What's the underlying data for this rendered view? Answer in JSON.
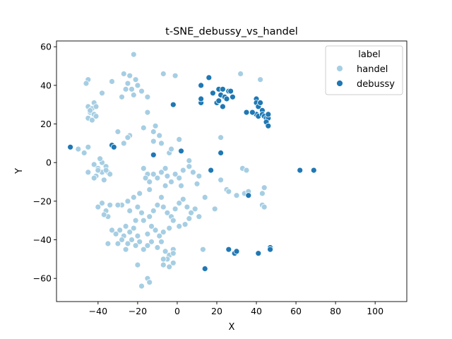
{
  "chart_data": {
    "type": "scatter",
    "title": "t-SNE_debussy_vs_handel",
    "xlabel": "X",
    "ylabel": "Y",
    "xlim": [
      -61,
      116
    ],
    "ylim": [
      -72,
      63
    ],
    "xticks": [
      -40,
      -20,
      0,
      20,
      40,
      60,
      80,
      100
    ],
    "yticks": [
      -60,
      -40,
      -20,
      0,
      20,
      40,
      60
    ],
    "xtick_labels": [
      "−40",
      "−20",
      "0",
      "20",
      "40",
      "60",
      "80",
      "100"
    ],
    "ytick_labels": [
      "−60",
      "−40",
      "−20",
      "0",
      "20",
      "40",
      "60"
    ],
    "grid": false,
    "legend": {
      "title": "label",
      "placement": "top-right",
      "entries": [
        "handel",
        "debussy"
      ]
    },
    "series": [
      {
        "name": "handel",
        "color": "#a6cee3",
        "points": [
          [
            -22,
            56
          ],
          [
            -45,
            43
          ],
          [
            -46,
            41
          ],
          [
            -38,
            36
          ],
          [
            -33,
            42
          ],
          [
            -27,
            46
          ],
          [
            -24,
            45
          ],
          [
            -21,
            43
          ],
          [
            -25,
            41
          ],
          [
            -23,
            38
          ],
          [
            -20,
            40
          ],
          [
            -18,
            37
          ],
          [
            -22,
            35
          ],
          [
            -26,
            38
          ],
          [
            -28,
            34
          ],
          [
            -15,
            34
          ],
          [
            -7,
            46
          ],
          [
            -1,
            45
          ],
          [
            32,
            46
          ],
          [
            42,
            43
          ],
          [
            -45,
            29
          ],
          [
            -43,
            28
          ],
          [
            -42,
            31
          ],
          [
            -41,
            29
          ],
          [
            -44,
            26
          ],
          [
            -42,
            25
          ],
          [
            -45,
            23
          ],
          [
            -43,
            22
          ],
          [
            -41,
            24
          ],
          [
            -44,
            27
          ],
          [
            -15,
            26
          ],
          [
            -17,
            18
          ],
          [
            -11,
            19
          ],
          [
            -12,
            16
          ],
          [
            -9,
            14
          ],
          [
            -12,
            11
          ],
          [
            -8,
            10
          ],
          [
            -24,
            14
          ],
          [
            -30,
            16
          ],
          [
            -33,
            9
          ],
          [
            -27,
            10
          ],
          [
            -25,
            13
          ],
          [
            -50,
            7
          ],
          [
            -47,
            5
          ],
          [
            -45,
            8
          ],
          [
            -4,
            5
          ],
          [
            -3,
            7
          ],
          [
            1,
            12
          ],
          [
            6,
            1
          ],
          [
            6,
            -2
          ],
          [
            8,
            -5
          ],
          [
            11,
            -7
          ],
          [
            -42,
            -1
          ],
          [
            -40,
            -3
          ],
          [
            -38,
            0
          ],
          [
            -36,
            -2
          ],
          [
            -35,
            -5
          ],
          [
            -38,
            -5
          ],
          [
            -41,
            -7
          ],
          [
            -45,
            -5
          ],
          [
            -42,
            -8
          ],
          [
            -40,
            -4
          ],
          [
            -37,
            -9
          ],
          [
            -34,
            -6
          ],
          [
            -39,
            2
          ],
          [
            -36,
            -4
          ],
          [
            -17,
            -3
          ],
          [
            -15,
            -6
          ],
          [
            -16,
            -8
          ],
          [
            -14,
            -10
          ],
          [
            -12,
            -6
          ],
          [
            -10,
            -8
          ],
          [
            -8,
            -5
          ],
          [
            -6,
            -3
          ],
          [
            -5,
            -7
          ],
          [
            -3,
            -10
          ],
          [
            -1,
            -6
          ],
          [
            1,
            -8
          ],
          [
            3,
            -4
          ],
          [
            2,
            -12
          ],
          [
            -6,
            -12
          ],
          [
            -14,
            -14
          ],
          [
            -19,
            -16
          ],
          [
            -22,
            -18
          ],
          [
            -25,
            -20
          ],
          [
            -28,
            -22
          ],
          [
            -24,
            -25
          ],
          [
            -20,
            -23
          ],
          [
            -18,
            -26
          ],
          [
            -21,
            -30
          ],
          [
            -17,
            -30
          ],
          [
            -14,
            -28
          ],
          [
            -12,
            -25
          ],
          [
            -10,
            -22
          ],
          [
            -8,
            -18
          ],
          [
            -7,
            -23
          ],
          [
            -5,
            -26
          ],
          [
            -3,
            -28
          ],
          [
            -1,
            -24
          ],
          [
            1,
            -21
          ],
          [
            3,
            -19
          ],
          [
            5,
            -23
          ],
          [
            7,
            -26
          ],
          [
            9,
            -24
          ],
          [
            11,
            -28
          ],
          [
            6,
            -29
          ],
          [
            4,
            -32
          ],
          [
            1,
            -33
          ],
          [
            -2,
            -30
          ],
          [
            -4,
            -34
          ],
          [
            -7,
            -36
          ],
          [
            -9,
            -38
          ],
          [
            -11,
            -35
          ],
          [
            -13,
            -33
          ],
          [
            -15,
            -37
          ],
          [
            -13,
            -41
          ],
          [
            -10,
            -44
          ],
          [
            -8,
            -41
          ],
          [
            -6,
            -46
          ],
          [
            -4,
            -48
          ],
          [
            -2,
            -45
          ],
          [
            -5,
            -50
          ],
          [
            -7,
            -53
          ],
          [
            -4,
            -54
          ],
          [
            -2,
            -52
          ],
          [
            -26,
            -33
          ],
          [
            -29,
            -35
          ],
          [
            -31,
            -37
          ],
          [
            -27,
            -38
          ],
          [
            -24,
            -36
          ],
          [
            -22,
            -34
          ],
          [
            -20,
            -38
          ],
          [
            -23,
            -40
          ],
          [
            -25,
            -42
          ],
          [
            -21,
            -43
          ],
          [
            -19,
            -41
          ],
          [
            -17,
            -45
          ],
          [
            -15,
            -43
          ],
          [
            -26,
            -45
          ],
          [
            -28,
            -40
          ],
          [
            -30,
            -42
          ],
          [
            -33,
            -35
          ],
          [
            -35,
            -42
          ],
          [
            -38,
            -21
          ],
          [
            -40,
            -23
          ],
          [
            -36,
            -25
          ],
          [
            -34,
            -22
          ],
          [
            -30,
            -22
          ],
          [
            -35,
            -28
          ],
          [
            -37,
            -27
          ],
          [
            -20,
            -53
          ],
          [
            -18,
            -64
          ],
          [
            -15,
            -60
          ],
          [
            -14,
            -62
          ],
          [
            -7,
            -50
          ],
          [
            -2,
            -47
          ],
          [
            22,
            -9
          ],
          [
            25,
            -14
          ],
          [
            26,
            -15
          ],
          [
            30,
            -17
          ],
          [
            34,
            -16
          ],
          [
            36,
            -15
          ],
          [
            33,
            -3
          ],
          [
            35,
            -4
          ],
          [
            43,
            -22
          ],
          [
            44,
            -23
          ],
          [
            44,
            -13
          ],
          [
            43,
            -16
          ],
          [
            19,
            -24
          ],
          [
            14,
            -18
          ],
          [
            10,
            -11
          ],
          [
            22,
            13
          ],
          [
            13,
            -45
          ],
          [
            41,
            -47
          ]
        ]
      },
      {
        "name": "debussy",
        "color": "#1f78b4",
        "points": [
          [
            -54,
            8
          ],
          [
            -33,
            9
          ],
          [
            -32,
            8
          ],
          [
            -12,
            4
          ],
          [
            -2,
            30
          ],
          [
            2,
            6
          ],
          [
            12,
            31
          ],
          [
            12,
            33
          ],
          [
            12,
            40
          ],
          [
            16,
            44
          ],
          [
            18,
            36
          ],
          [
            20,
            31
          ],
          [
            21,
            38
          ],
          [
            22,
            35
          ],
          [
            23,
            38
          ],
          [
            24,
            34
          ],
          [
            23,
            29
          ],
          [
            25,
            33
          ],
          [
            26,
            37
          ],
          [
            27,
            37
          ],
          [
            28,
            34
          ],
          [
            21,
            32
          ],
          [
            22,
            5
          ],
          [
            17,
            -4
          ],
          [
            14,
            -55
          ],
          [
            26,
            -45
          ],
          [
            29,
            -47
          ],
          [
            30,
            -46
          ],
          [
            36,
            -17
          ],
          [
            35,
            26
          ],
          [
            40,
            33
          ],
          [
            40,
            31
          ],
          [
            41,
            29
          ],
          [
            42,
            31
          ],
          [
            40,
            25
          ],
          [
            41,
            24
          ],
          [
            43,
            27
          ],
          [
            43,
            25
          ],
          [
            44,
            24
          ],
          [
            45,
            23
          ],
          [
            46,
            23
          ],
          [
            45,
            21
          ],
          [
            46,
            19
          ],
          [
            46,
            25
          ],
          [
            38,
            26
          ],
          [
            41,
            -47
          ],
          [
            47,
            -44
          ],
          [
            47,
            -45
          ],
          [
            62,
            -4
          ],
          [
            69,
            -4
          ]
        ]
      }
    ]
  }
}
